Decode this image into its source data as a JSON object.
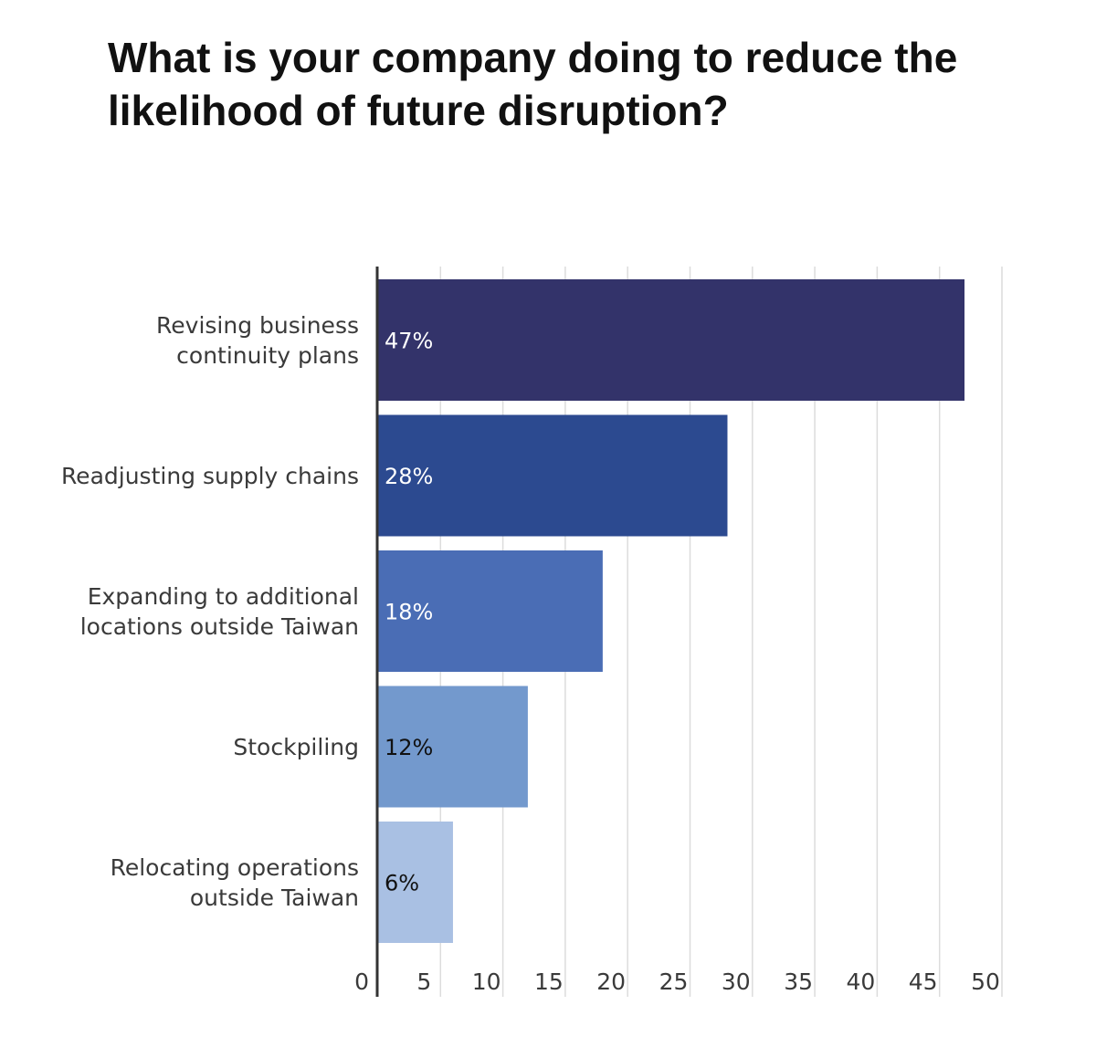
{
  "chart_data": {
    "type": "bar",
    "orientation": "horizontal",
    "title": "What is your company doing to reduce the likelihood of future disruption?",
    "xlabel": "",
    "ylabel": "",
    "categories": [
      [
        "Revising business",
        "continuity plans"
      ],
      [
        "Readjusting supply chains"
      ],
      [
        "Expanding to additional",
        "locations outside Taiwan"
      ],
      [
        "Stockpiling"
      ],
      [
        "Relocating operations",
        "outside Taiwan"
      ]
    ],
    "values": [
      47,
      28,
      18,
      12,
      6
    ],
    "data_labels": [
      "47%",
      "28%",
      "18%",
      "12%",
      "6%"
    ],
    "bar_colors": [
      "#33336a",
      "#2c4a90",
      "#4a6db5",
      "#7399cd",
      "#a9c0e3"
    ],
    "label_colors": [
      "#ffffff",
      "#ffffff",
      "#ffffff",
      "#111111",
      "#111111"
    ],
    "xlim": [
      0,
      50
    ],
    "xticks": [
      0,
      5,
      10,
      15,
      20,
      25,
      30,
      35,
      40,
      45,
      50
    ],
    "grid": true
  }
}
